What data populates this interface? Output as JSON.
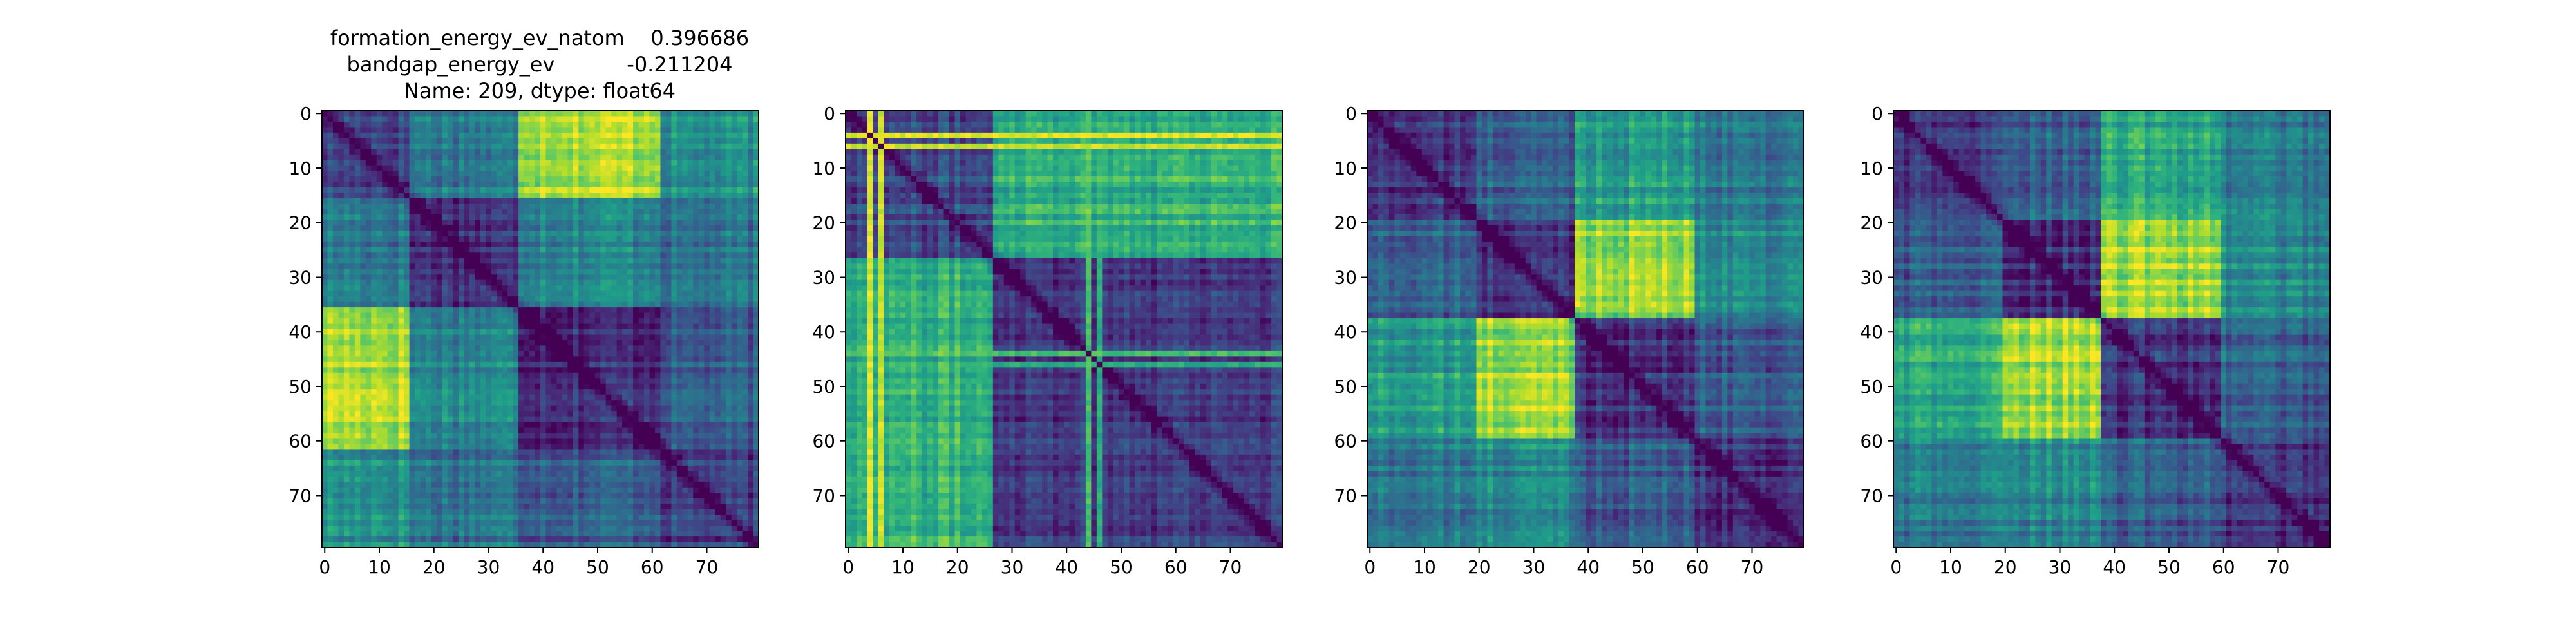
{
  "figure": {
    "title_lines": [
      "formation_energy_ev_natom    0.396686",
      "bandgap_energy_ev           -0.211204",
      "Name: 209, dtype: float64"
    ]
  },
  "chart_data": [
    {
      "type": "heatmap",
      "title": "",
      "colormap": "viridis",
      "size": 80,
      "grid": false,
      "xlim": [
        0,
        79
      ],
      "ylim": [
        79,
        0
      ],
      "xticks": [
        0,
        10,
        20,
        30,
        40,
        50,
        60,
        70
      ],
      "yticks": [
        0,
        10,
        20,
        30,
        40,
        50,
        60,
        70
      ],
      "block_boundaries": [
        0,
        16,
        36,
        62,
        80
      ],
      "block_levels": [
        [
          0.22,
          0.42,
          0.9,
          0.5
        ],
        [
          0.42,
          0.15,
          0.48,
          0.38
        ],
        [
          0.9,
          0.48,
          0.15,
          0.3
        ],
        [
          0.5,
          0.38,
          0.3,
          0.18
        ]
      ]
    },
    {
      "type": "heatmap",
      "title": "",
      "colormap": "viridis",
      "size": 80,
      "grid": false,
      "xlim": [
        0,
        79
      ],
      "ylim": [
        79,
        0
      ],
      "xticks": [
        0,
        10,
        20,
        30,
        40,
        50,
        60,
        70
      ],
      "yticks": [
        0,
        10,
        20,
        30,
        40,
        50,
        60,
        70
      ],
      "block_boundaries": [
        0,
        27,
        80
      ],
      "block_levels": [
        [
          0.22,
          0.65
        ],
        [
          0.65,
          0.2
        ]
      ],
      "bright_lines": [
        {
          "index": 4,
          "level": 0.95
        },
        {
          "index": 6,
          "level": 0.92
        },
        {
          "index": 44,
          "level": 0.7
        },
        {
          "index": 46,
          "level": 0.62
        }
      ]
    },
    {
      "type": "heatmap",
      "title": "",
      "colormap": "viridis",
      "size": 80,
      "grid": false,
      "xlim": [
        0,
        79
      ],
      "ylim": [
        79,
        0
      ],
      "xticks": [
        0,
        10,
        20,
        30,
        40,
        50,
        60,
        70
      ],
      "yticks": [
        0,
        10,
        20,
        30,
        40,
        50,
        60,
        70
      ],
      "block_boundaries": [
        0,
        20,
        38,
        60,
        80
      ],
      "block_levels": [
        [
          0.15,
          0.3,
          0.55,
          0.4
        ],
        [
          0.3,
          0.15,
          0.85,
          0.48
        ],
        [
          0.55,
          0.85,
          0.15,
          0.3
        ],
        [
          0.4,
          0.48,
          0.3,
          0.15
        ]
      ]
    },
    {
      "type": "heatmap",
      "title": "",
      "colormap": "viridis",
      "size": 80,
      "grid": false,
      "xlim": [
        0,
        79
      ],
      "ylim": [
        79,
        0
      ],
      "xticks": [
        0,
        10,
        20,
        30,
        40,
        50,
        60,
        70
      ],
      "yticks": [
        0,
        10,
        20,
        30,
        40,
        50,
        60,
        70
      ],
      "block_boundaries": [
        0,
        20,
        38,
        60,
        80
      ],
      "block_levels": [
        [
          0.15,
          0.3,
          0.6,
          0.4
        ],
        [
          0.3,
          0.15,
          0.88,
          0.48
        ],
        [
          0.6,
          0.88,
          0.15,
          0.3
        ],
        [
          0.4,
          0.48,
          0.3,
          0.15
        ]
      ]
    }
  ]
}
